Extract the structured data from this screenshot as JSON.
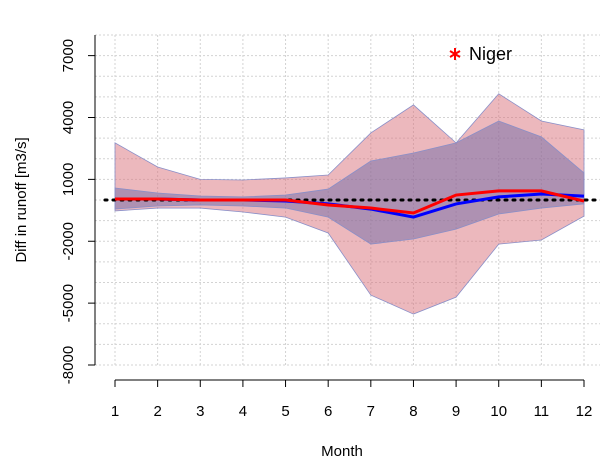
{
  "chart_data": {
    "type": "band-line",
    "x_label": "Month",
    "y_label": "Diff in runoff [m3/s]",
    "x": [
      1,
      2,
      3,
      4,
      5,
      6,
      7,
      8,
      9,
      10,
      11,
      12
    ],
    "xlim": [
      1,
      12
    ],
    "xticks": [
      1,
      2,
      3,
      4,
      5,
      6,
      7,
      8,
      9,
      10,
      11,
      12
    ],
    "ylim": [
      -8000,
      8000
    ],
    "yticks": [
      -8000,
      -5000,
      -2000,
      1000,
      4000,
      7000
    ],
    "ygrid": [
      -8000,
      -7000,
      -6000,
      -5000,
      -4000,
      -3000,
      -2000,
      -1000,
      0,
      1000,
      2000,
      3000,
      4000,
      5000,
      6000,
      7000,
      8000
    ],
    "grid": true,
    "hline": 0,
    "bands": [
      {
        "color": "#d9717c",
        "upper": [
          2770,
          1600,
          1000,
          970,
          1070,
          1210,
          3250,
          4610,
          2770,
          5150,
          3830,
          3400
        ],
        "lower": [
          -530,
          -390,
          -390,
          -580,
          -830,
          -1600,
          -4610,
          -5530,
          -4710,
          -2140,
          -1940,
          -780
        ]
      },
      {
        "color": "#6f6aa8",
        "upper": [
          580,
          340,
          190,
          150,
          240,
          530,
          1890,
          2280,
          2770,
          3830,
          3060,
          1310
        ],
        "lower": [
          -440,
          -290,
          -240,
          -290,
          -390,
          -830,
          -2140,
          -1890,
          -1410,
          -680,
          -390,
          -190
        ]
      }
    ],
    "series": [
      {
        "color": "#0000ff",
        "values": [
          50,
          50,
          0,
          0,
          -50,
          -190,
          -440,
          -830,
          -190,
          150,
          290,
          190
        ]
      },
      {
        "color": "#ff0000",
        "values": [
          50,
          50,
          0,
          0,
          0,
          -240,
          -390,
          -630,
          240,
          440,
          440,
          -50
        ]
      }
    ],
    "legend": {
      "label": "Niger",
      "color": "#ff0000",
      "position": "top-right"
    }
  }
}
